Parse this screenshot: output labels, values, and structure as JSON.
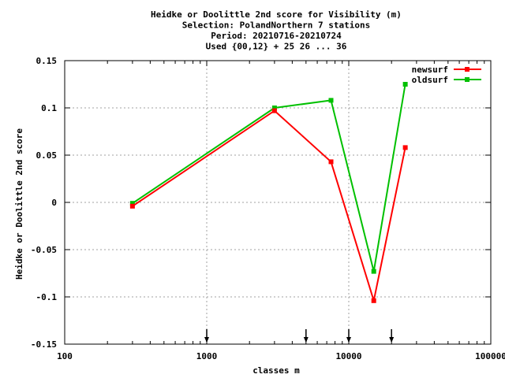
{
  "chart_data": {
    "type": "line",
    "title": [
      "Heidke or Doolittle 2nd score  for Visibility (m)",
      "Selection: PolandNorthern      7 stations",
      "Period: 20210716-20210724",
      "Used {00,12} + 25 26 ... 36"
    ],
    "xlabel": "classes m",
    "ylabel": "Heidke or Doolittle 2nd score",
    "xscale": "log",
    "xlim": [
      100,
      100000
    ],
    "ylim": [
      -0.15,
      0.15
    ],
    "xticks": [
      {
        "value": 100,
        "label": "100"
      },
      {
        "value": 1000,
        "label": "1000"
      },
      {
        "value": 10000,
        "label": "10000"
      },
      {
        "value": 100000,
        "label": "100000"
      }
    ],
    "yticks": [
      {
        "value": 0.15,
        "label": "0.15"
      },
      {
        "value": 0.1,
        "label": "0.1"
      },
      {
        "value": 0.05,
        "label": "0.05"
      },
      {
        "value": 0,
        "label": "0"
      },
      {
        "value": -0.05,
        "label": "-0.05"
      },
      {
        "value": -0.1,
        "label": "-0.1"
      },
      {
        "value": -0.15,
        "label": "-0.15"
      }
    ],
    "grid": true,
    "legend_position": "top-right",
    "class_markers": [
      1000,
      5000,
      10000,
      20000
    ],
    "series": [
      {
        "name": "newsurf",
        "color": "#ff0000",
        "x": [
          300,
          3000,
          7500,
          15000,
          25000
        ],
        "y": [
          -0.004,
          0.097,
          0.043,
          -0.104,
          0.058
        ]
      },
      {
        "name": "oldsurf",
        "color": "#00c000",
        "x": [
          300,
          3000,
          7500,
          15000,
          25000
        ],
        "y": [
          -0.001,
          0.1,
          0.108,
          -0.073,
          0.125
        ]
      }
    ]
  }
}
